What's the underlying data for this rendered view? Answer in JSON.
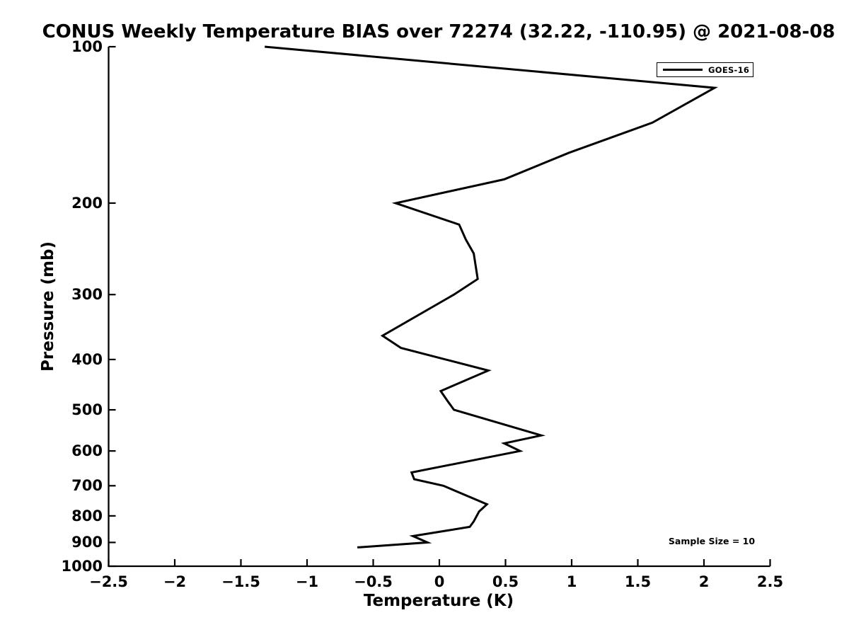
{
  "colors": {
    "background": "#ffffff",
    "foreground": "#000000",
    "line": "#000000"
  },
  "chart_data": {
    "type": "line",
    "title": "CONUS Weekly Temperature BIAS over 72274 (32.22, -110.95) @ 2021-08-08",
    "xlabel": "Temperature (K)",
    "ylabel": "Pressure (mb)",
    "grid": false,
    "x_axis": {
      "min": -2.5,
      "max": 2.5,
      "ticks": [
        -2.5,
        -2,
        -1.5,
        -1,
        -0.5,
        0,
        0.5,
        1,
        1.5,
        2,
        2.5
      ],
      "tick_labels": [
        "−2.5",
        "−2",
        "−1.5",
        "−1",
        "−0.5",
        "0",
        "0.5",
        "1",
        "1.5",
        "2",
        "2.5"
      ]
    },
    "y_axis": {
      "scale": "log",
      "inverted": true,
      "min_mb": 100,
      "max_mb": 1000,
      "ticks": [
        100,
        200,
        300,
        400,
        500,
        600,
        700,
        800,
        900,
        1000
      ],
      "tick_labels": [
        "100",
        "200",
        "300",
        "400",
        "500",
        "600",
        "700",
        "800",
        "900",
        "1000"
      ]
    },
    "legend": {
      "position": "top-right",
      "entries": [
        {
          "label": "GOES-16",
          "color": "#000000"
        }
      ]
    },
    "annotations": [
      {
        "text": "Sample Size = 10",
        "anchor": "bottom-right"
      }
    ],
    "series": [
      {
        "name": "GOES-16",
        "color": "#000000",
        "line_width": 3,
        "points_pressure_mb_bias_K": [
          [
            100,
            -1.32
          ],
          [
            120,
            2.08
          ],
          [
            140,
            1.61
          ],
          [
            160,
            0.98
          ],
          [
            180,
            0.49
          ],
          [
            200,
            -0.33
          ],
          [
            220,
            0.15
          ],
          [
            235,
            0.2
          ],
          [
            250,
            0.26
          ],
          [
            280,
            0.29
          ],
          [
            300,
            0.11
          ],
          [
            360,
            -0.43
          ],
          [
            380,
            -0.29
          ],
          [
            420,
            0.37
          ],
          [
            460,
            0.01
          ],
          [
            480,
            0.06
          ],
          [
            500,
            0.11
          ],
          [
            560,
            0.77
          ],
          [
            580,
            0.49
          ],
          [
            600,
            0.61
          ],
          [
            660,
            -0.21
          ],
          [
            680,
            -0.19
          ],
          [
            700,
            0.03
          ],
          [
            760,
            0.36
          ],
          [
            785,
            0.3
          ],
          [
            820,
            0.26
          ],
          [
            840,
            0.23
          ],
          [
            875,
            -0.2
          ],
          [
            900,
            -0.09
          ],
          [
            920,
            -0.62
          ]
        ]
      }
    ]
  }
}
